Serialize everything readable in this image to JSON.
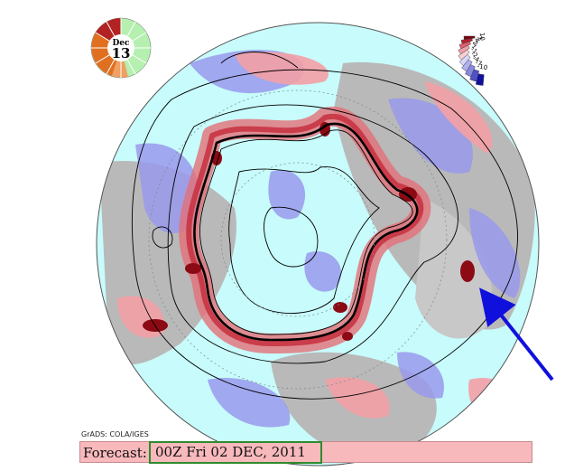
{
  "day_dial": {
    "month": "Dec",
    "day": "13",
    "colors": {
      "red": "#b22222",
      "orange": "#e07020",
      "green": "#b6f0b0"
    }
  },
  "legend": {
    "ticks": [
      "10",
      "7",
      "4",
      "2",
      "1",
      "-1",
      "-2",
      "-4",
      "-7",
      "-10"
    ],
    "colors": [
      "#7a0010",
      "#b52030",
      "#e06070",
      "#f0a0a8",
      "#f8d0d4",
      "#d6d6f8",
      "#b0b0f0",
      "#8888e0",
      "#5050c8",
      "#1010a0"
    ]
  },
  "map": {
    "ocean_color": "#c8fbfb",
    "land_color": "#b9b9b9",
    "pos_color": "#f3a0a5",
    "neg_color": "#9999ec",
    "contour_color": "#000000",
    "arrow_color": "#1010dd"
  },
  "credit": "GrADS: COLA/IGES",
  "forecast": {
    "label": "Forecast:",
    "value": "00Z Fri 02 DEC, 2011",
    "highlight_color": "#2e8b2e"
  }
}
